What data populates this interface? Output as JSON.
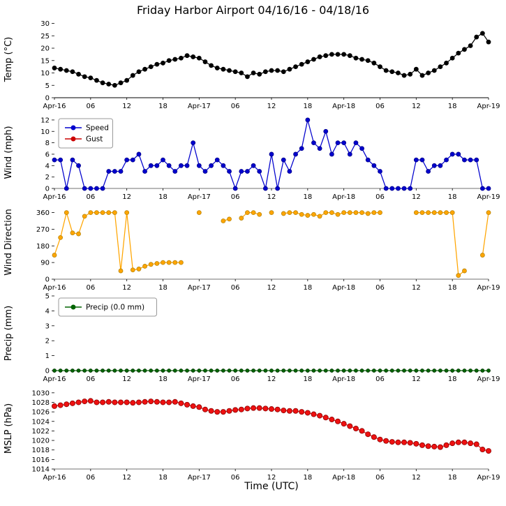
{
  "chart_data": {
    "type": "line",
    "title": "Friday Harbor Airport 04/16/16 - 04/18/16",
    "xlabel": "Time (UTC)",
    "x_unit": "hours since Apr-16 00:00 UTC",
    "x_range": [
      0,
      72
    ],
    "grid": false,
    "xticks": [
      {
        "h": 0,
        "label": "Apr-16"
      },
      {
        "h": 6,
        "label": "06"
      },
      {
        "h": 12,
        "label": "12"
      },
      {
        "h": 18,
        "label": "18"
      },
      {
        "h": 24,
        "label": "Apr-17"
      },
      {
        "h": 30,
        "label": "06"
      },
      {
        "h": 36,
        "label": "12"
      },
      {
        "h": 42,
        "label": "18"
      },
      {
        "h": 48,
        "label": "Apr-18"
      },
      {
        "h": 54,
        "label": "06"
      },
      {
        "h": 60,
        "label": "12"
      },
      {
        "h": 66,
        "label": "18"
      },
      {
        "h": 72,
        "label": "Apr-19"
      }
    ],
    "subplots": [
      {
        "name": "temperature",
        "ylabel": "Temp (°C)",
        "ylim": [
          0,
          31
        ],
        "yticks": [
          0,
          5,
          10,
          15,
          20,
          25,
          30
        ],
        "series": [
          {
            "name": "Temp",
            "color": "#000000",
            "edge": "#000000",
            "marker_r": 3,
            "values": [
              12,
              11.5,
              11,
              10.5,
              9.5,
              8.5,
              8,
              7,
              6,
              5.5,
              5,
              6,
              7,
              9,
              10.5,
              11.5,
              12.5,
              13.5,
              14,
              15,
              15.5,
              16,
              17,
              16.5,
              16,
              14.5,
              13,
              12,
              11.5,
              11,
              10.5,
              10,
              8.5,
              10,
              9.5,
              10.5,
              11,
              11,
              10.5,
              11.5,
              12.5,
              13.5,
              14.5,
              15.5,
              16.5,
              17,
              17.5,
              17.5,
              17.5,
              17,
              16,
              15.5,
              15,
              14,
              12.5,
              11,
              10.5,
              10,
              9,
              9.5,
              11.5,
              9,
              10,
              11,
              12.5,
              14,
              16,
              18,
              19.5,
              21,
              24.5,
              26,
              22.5
            ]
          }
        ]
      },
      {
        "name": "wind-speed",
        "ylabel": "Wind (mph)",
        "ylim": [
          0,
          12.6
        ],
        "yticks": [
          0,
          2,
          4,
          6,
          8,
          10,
          12
        ],
        "legend": {
          "position": "upper-left",
          "items": [
            {
              "label": "Speed",
              "color": "#0000cd"
            },
            {
              "label": "Gust",
              "color": "#cc0000"
            }
          ]
        },
        "series": [
          {
            "name": "Speed",
            "color": "#0000cd",
            "edge": "#00008b",
            "marker_r": 3,
            "values": [
              5,
              5,
              0,
              5,
              4,
              0,
              0,
              0,
              0,
              3,
              3,
              3,
              5,
              5,
              6,
              3,
              4,
              4,
              5,
              4,
              3,
              4,
              4,
              8,
              4,
              3,
              4,
              5,
              4,
              3,
              0,
              3,
              3,
              4,
              3,
              0,
              6,
              0,
              5,
              3,
              6,
              7,
              12,
              8,
              7,
              10,
              6,
              8,
              8,
              6,
              8,
              7,
              5,
              4,
              3,
              0,
              0,
              0,
              0,
              0,
              5,
              5,
              3,
              4,
              4,
              5,
              6,
              6,
              5,
              5,
              5,
              0,
              0
            ]
          },
          {
            "name": "Gust",
            "color": "#cc0000",
            "edge": "#8b0000",
            "marker_r": 3,
            "values": []
          }
        ]
      },
      {
        "name": "wind-direction",
        "ylabel": "Wind Direction",
        "ylim": [
          0,
          400
        ],
        "yticks": [
          0,
          90,
          180,
          270,
          360
        ],
        "series": [
          {
            "name": "Direction",
            "color": "#ffa500",
            "edge": "#b8860b",
            "marker_r": 3,
            "values": [
              130,
              225,
              360,
              250,
              245,
              340,
              360,
              360,
              360,
              360,
              360,
              45,
              360,
              50,
              55,
              70,
              80,
              85,
              90,
              90,
              90,
              90,
              null,
              null,
              360,
              null,
              null,
              null,
              315,
              325,
              null,
              330,
              360,
              360,
              350,
              null,
              360,
              null,
              355,
              360,
              360,
              350,
              345,
              350,
              340,
              360,
              360,
              350,
              360,
              360,
              360,
              360,
              355,
              360,
              360,
              null,
              null,
              null,
              null,
              null,
              360,
              360,
              360,
              360,
              360,
              360,
              360,
              20,
              45,
              null,
              null,
              130,
              360
            ]
          }
        ]
      },
      {
        "name": "precipitation",
        "ylabel": "Precip (mm)",
        "ylim": [
          0,
          5
        ],
        "yticks": [
          0,
          1,
          2,
          3,
          4,
          5
        ],
        "legend": {
          "position": "upper-left",
          "items": [
            {
              "label": "Precip (0.0 mm)",
              "color": "#006400"
            }
          ]
        },
        "series": [
          {
            "name": "Precip",
            "color": "#006400",
            "edge": "#003300",
            "marker_r": 2.5,
            "values": [
              0,
              0,
              0,
              0,
              0,
              0,
              0,
              0,
              0,
              0,
              0,
              0,
              0,
              0,
              0,
              0,
              0,
              0,
              0,
              0,
              0,
              0,
              0,
              0,
              0,
              0,
              0,
              0,
              0,
              0,
              0,
              0,
              0,
              0,
              0,
              0,
              0,
              0,
              0,
              0,
              0,
              0,
              0,
              0,
              0,
              0,
              0,
              0,
              0,
              0,
              0,
              0,
              0,
              0,
              0,
              0,
              0,
              0,
              0,
              0,
              0,
              0,
              0,
              0,
              0,
              0,
              0,
              0,
              0,
              0,
              0,
              0,
              0
            ]
          }
        ]
      },
      {
        "name": "mslp",
        "ylabel": "MSLP (hPa)",
        "ylim": [
          1014,
          1031
        ],
        "yticks": [
          1014,
          1016,
          1018,
          1020,
          1022,
          1024,
          1026,
          1028,
          1030
        ],
        "series": [
          {
            "name": "MSLP",
            "color": "#ee1111",
            "edge": "#8b0000",
            "marker_r": 3.6,
            "values": [
              1027.2,
              1027.4,
              1027.6,
              1027.8,
              1028.0,
              1028.2,
              1028.3,
              1028.0,
              1028.0,
              1028.1,
              1028.0,
              1028.0,
              1028.0,
              1027.9,
              1028.0,
              1028.1,
              1028.2,
              1028.1,
              1028.0,
              1028.0,
              1028.1,
              1027.8,
              1027.5,
              1027.2,
              1027.0,
              1026.5,
              1026.2,
              1026.0,
              1026.0,
              1026.2,
              1026.4,
              1026.5,
              1026.7,
              1026.8,
              1026.8,
              1026.7,
              1026.6,
              1026.5,
              1026.3,
              1026.2,
              1026.2,
              1026.0,
              1025.8,
              1025.5,
              1025.2,
              1024.8,
              1024.4,
              1024.0,
              1023.5,
              1023.0,
              1022.5,
              1022.0,
              1021.3,
              1020.7,
              1020.2,
              1019.9,
              1019.7,
              1019.6,
              1019.6,
              1019.5,
              1019.3,
              1019.0,
              1018.8,
              1018.7,
              1018.6,
              1019.0,
              1019.4,
              1019.6,
              1019.6,
              1019.4,
              1019.2,
              1018.1,
              1017.8
            ]
          }
        ]
      }
    ]
  }
}
